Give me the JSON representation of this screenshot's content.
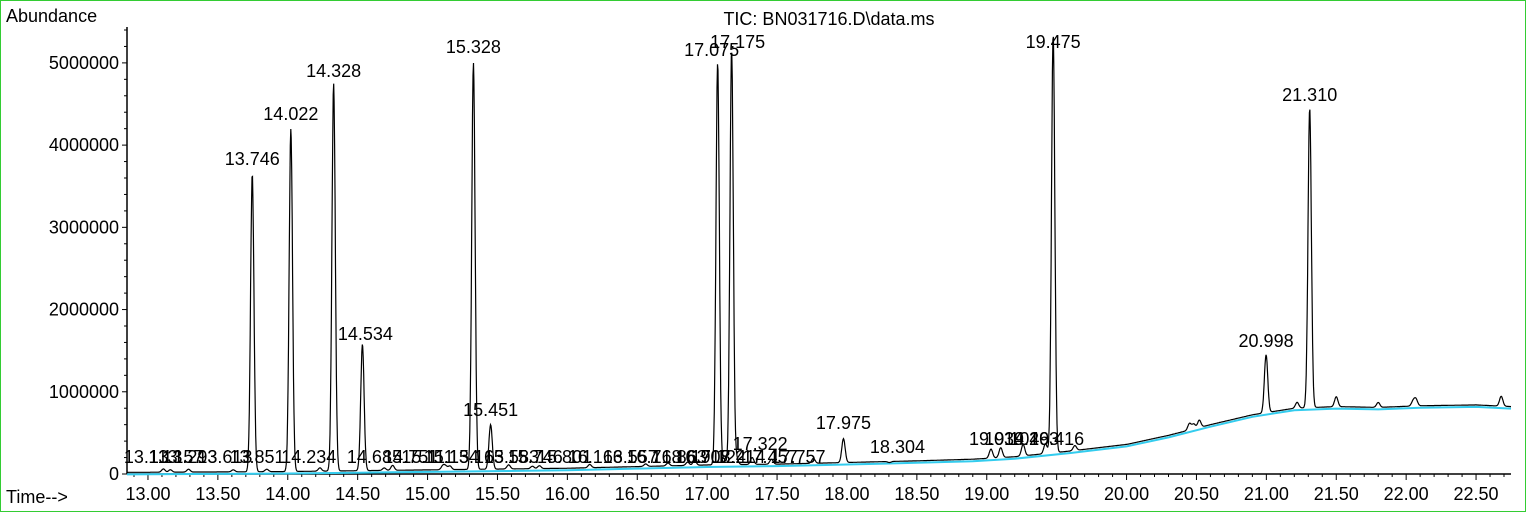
{
  "chart_data": {
    "type": "line",
    "title": "TIC: BN031716.D\\data.ms",
    "ylabel": "Abundance",
    "xlabel": "Time-->",
    "xlim": [
      12.85,
      22.75
    ],
    "ylim": [
      0,
      5400000
    ],
    "x_ticks": [
      "13.00",
      "13.50",
      "14.00",
      "14.50",
      "15.00",
      "15.50",
      "16.00",
      "16.50",
      "17.00",
      "17.50",
      "18.00",
      "18.50",
      "19.00",
      "19.50",
      "20.00",
      "20.50",
      "21.00",
      "21.50",
      "22.00",
      "22.50"
    ],
    "y_ticks": [
      "0",
      "1000000",
      "2000000",
      "3000000",
      "4000000",
      "5000000"
    ],
    "peaks": [
      {
        "rt": 13.746,
        "label": "13.746",
        "height": 3650000
      },
      {
        "rt": 14.022,
        "label": "14.022",
        "height": 4200000
      },
      {
        "rt": 14.328,
        "label": "14.328",
        "height": 4750000
      },
      {
        "rt": 14.534,
        "label": "14.534",
        "height": 1580000
      },
      {
        "rt": 15.328,
        "label": "15.328",
        "height": 5000000
      },
      {
        "rt": 15.451,
        "label": "15.451",
        "height": 600000
      },
      {
        "rt": 17.075,
        "label": "17.075",
        "height": 5000000
      },
      {
        "rt": 17.175,
        "label": "17.175",
        "height": 5150000
      },
      {
        "rt": 17.322,
        "label": "17.322",
        "height": 200000
      },
      {
        "rt": 17.975,
        "label": "17.975",
        "height": 430000
      },
      {
        "rt": 18.304,
        "label": "18.304",
        "height": 140000
      },
      {
        "rt": 19.475,
        "label": "19.475",
        "height": 5350000
      },
      {
        "rt": 20.998,
        "label": "20.998",
        "height": 1450000
      },
      {
        "rt": 21.31,
        "label": "21.310",
        "height": 4450000
      }
    ],
    "minor_labels": [
      {
        "rt": 13.02,
        "text": "13.113"
      },
      {
        "rt": 13.2,
        "text": "13.157"
      },
      {
        "rt": 13.3,
        "text": "13.293"
      },
      {
        "rt": 13.55,
        "text": "13.613"
      },
      {
        "rt": 13.78,
        "text": "13.851"
      },
      {
        "rt": 14.15,
        "text": "14.234"
      },
      {
        "rt": 14.62,
        "text": "14.685"
      },
      {
        "rt": 14.88,
        "text": "14.751"
      },
      {
        "rt": 15.0,
        "text": "15.111"
      },
      {
        "rt": 15.17,
        "text": "15.134"
      },
      {
        "rt": 15.35,
        "text": "15.163"
      },
      {
        "rt": 15.6,
        "text": "15.583"
      },
      {
        "rt": 15.77,
        "text": "15.746"
      },
      {
        "rt": 15.98,
        "text": "15.801"
      },
      {
        "rt": 16.2,
        "text": "16.163"
      },
      {
        "rt": 16.45,
        "text": "16.557"
      },
      {
        "rt": 16.62,
        "text": "16.718"
      },
      {
        "rt": 16.8,
        "text": "16.863"
      },
      {
        "rt": 16.97,
        "text": "16.908"
      },
      {
        "rt": 17.08,
        "text": "17.124"
      },
      {
        "rt": 17.22,
        "text": "17.214"
      },
      {
        "rt": 17.45,
        "text": "17.457"
      },
      {
        "rt": 17.65,
        "text": "17.757"
      },
      {
        "rt": 19.07,
        "text": "19.034"
      },
      {
        "rt": 19.18,
        "text": "19.104"
      },
      {
        "rt": 19.32,
        "text": "19.263"
      },
      {
        "rt": 19.5,
        "text": "19.416"
      }
    ],
    "baseline": [
      [
        12.85,
        20000
      ],
      [
        13.5,
        25000
      ],
      [
        14.0,
        30000
      ],
      [
        14.5,
        40000
      ],
      [
        15.0,
        50000
      ],
      [
        15.5,
        60000
      ],
      [
        16.0,
        70000
      ],
      [
        16.5,
        90000
      ],
      [
        17.0,
        110000
      ],
      [
        17.5,
        120000
      ],
      [
        18.0,
        140000
      ],
      [
        18.5,
        160000
      ],
      [
        18.9,
        180000
      ],
      [
        19.2,
        210000
      ],
      [
        19.6,
        280000
      ],
      [
        20.0,
        360000
      ],
      [
        20.3,
        470000
      ],
      [
        20.6,
        600000
      ],
      [
        20.9,
        720000
      ],
      [
        21.2,
        800000
      ],
      [
        21.5,
        820000
      ],
      [
        21.8,
        810000
      ],
      [
        22.1,
        830000
      ],
      [
        22.5,
        840000
      ],
      [
        22.75,
        820000
      ]
    ]
  }
}
